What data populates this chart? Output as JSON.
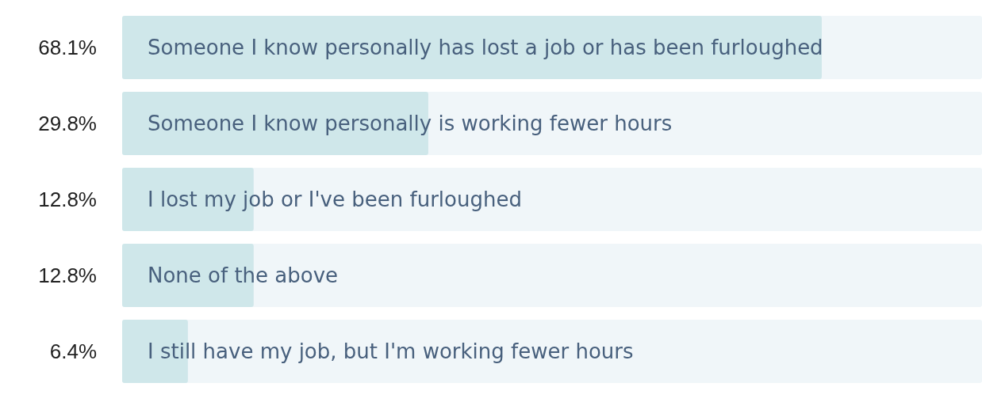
{
  "chart_data": {
    "type": "bar",
    "orientation": "horizontal",
    "categories": [
      "Someone I know personally has lost a job or has been furloughed",
      "Someone I know personally is working fewer hours",
      "I lost my job or I've been furloughed",
      "None of the above",
      "I still have my job, but I'm working fewer hours"
    ],
    "values": [
      68.1,
      29.8,
      12.8,
      12.8,
      6.4
    ],
    "value_labels": [
      "68.1%",
      "29.8%",
      "12.8%",
      "12.8%",
      "6.4%"
    ],
    "color": "#cfe7ea",
    "xlim": [
      0,
      83.7
    ],
    "tick_labels": "y"
  }
}
